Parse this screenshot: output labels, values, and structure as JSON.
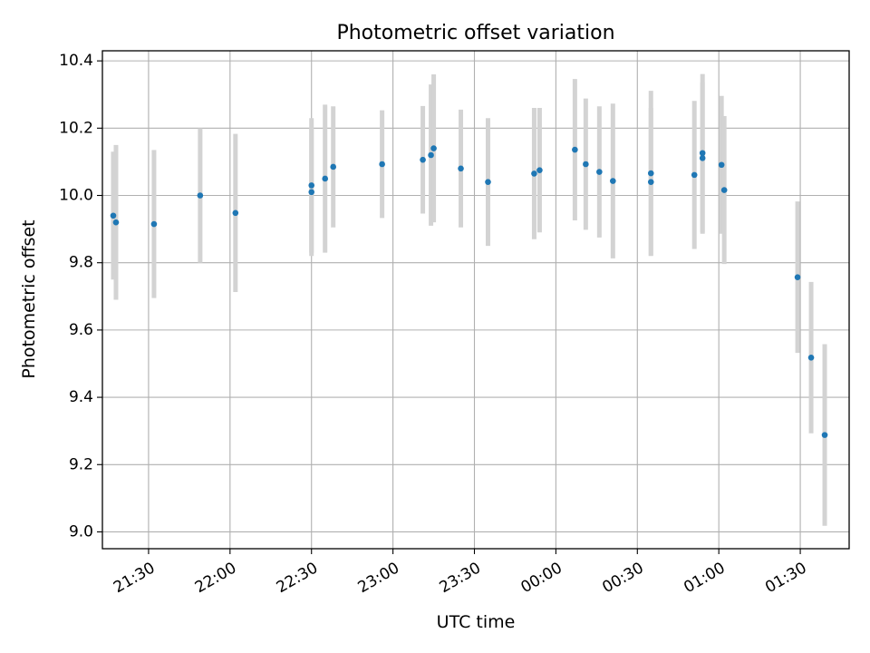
{
  "chart_data": {
    "type": "scatter",
    "title": "Photometric offset variation",
    "xlabel": "UTC time",
    "ylabel": "Photometric offset",
    "x_is_time": true,
    "xlim": [
      "21:13",
      "01:48"
    ],
    "ylim": [
      8.95,
      10.43
    ],
    "x_ticks": [
      "21:30",
      "22:00",
      "22:30",
      "23:00",
      "23:30",
      "00:00",
      "00:30",
      "01:00",
      "01:30"
    ],
    "y_ticks": [
      "9.0",
      "9.2",
      "9.4",
      "9.6",
      "9.8",
      "10.0",
      "10.2",
      "10.4"
    ],
    "grid": true,
    "point_color": "#1f77b4",
    "errorbar_color": "#d3d3d3",
    "points": [
      {
        "t": "21:17",
        "y": 9.94,
        "err": 0.19
      },
      {
        "t": "21:18",
        "y": 9.92,
        "err": 0.23
      },
      {
        "t": "21:32",
        "y": 9.915,
        "err": 0.22
      },
      {
        "t": "21:49",
        "y": 10.0,
        "err": 0.2
      },
      {
        "t": "22:02",
        "y": 9.948,
        "err": 0.235
      },
      {
        "t": "22:30",
        "y": 10.03,
        "err": 0.2
      },
      {
        "t": "22:30",
        "y": 10.01,
        "err": 0.19
      },
      {
        "t": "22:35",
        "y": 10.05,
        "err": 0.22
      },
      {
        "t": "22:38",
        "y": 10.085,
        "err": 0.18
      },
      {
        "t": "22:56",
        "y": 10.093,
        "err": 0.16
      },
      {
        "t": "23:11",
        "y": 10.106,
        "err": 0.16
      },
      {
        "t": "23:14",
        "y": 10.12,
        "err": 0.21
      },
      {
        "t": "23:15",
        "y": 10.14,
        "err": 0.22
      },
      {
        "t": "23:25",
        "y": 10.08,
        "err": 0.175
      },
      {
        "t": "23:35",
        "y": 10.04,
        "err": 0.19
      },
      {
        "t": "23:52",
        "y": 10.065,
        "err": 0.195
      },
      {
        "t": "23:54",
        "y": 10.075,
        "err": 0.185
      },
      {
        "t": "00:07",
        "y": 10.136,
        "err": 0.21
      },
      {
        "t": "00:11",
        "y": 10.093,
        "err": 0.195
      },
      {
        "t": "00:16",
        "y": 10.07,
        "err": 0.195
      },
      {
        "t": "00:21",
        "y": 10.043,
        "err": 0.23
      },
      {
        "t": "00:35",
        "y": 10.066,
        "err": 0.245
      },
      {
        "t": "00:35",
        "y": 10.04,
        "err": 0.22
      },
      {
        "t": "00:51",
        "y": 10.061,
        "err": 0.22
      },
      {
        "t": "00:54",
        "y": 10.126,
        "err": 0.235
      },
      {
        "t": "00:54",
        "y": 10.111,
        "err": 0.225
      },
      {
        "t": "01:01",
        "y": 10.091,
        "err": 0.205
      },
      {
        "t": "01:02",
        "y": 10.016,
        "err": 0.22
      },
      {
        "t": "01:29",
        "y": 9.757,
        "err": 0.225
      },
      {
        "t": "01:34",
        "y": 9.518,
        "err": 0.225
      },
      {
        "t": "01:39",
        "y": 9.288,
        "err": 0.27
      }
    ]
  }
}
